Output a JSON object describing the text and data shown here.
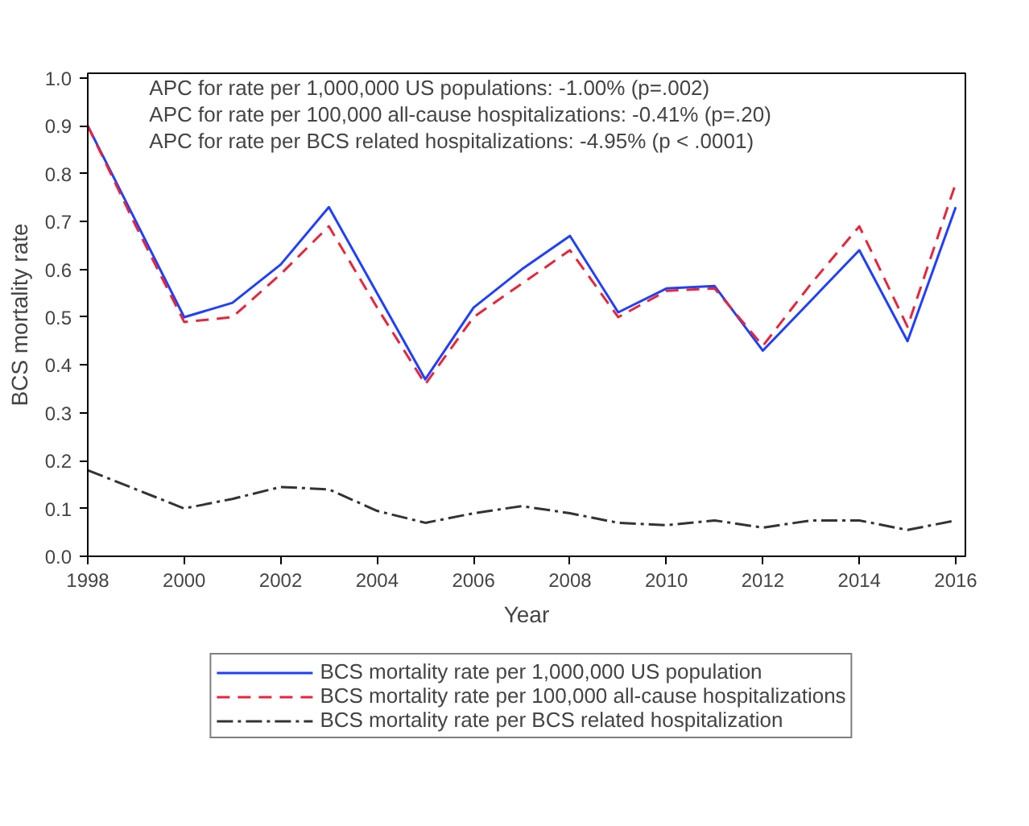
{
  "chart_data": {
    "type": "line",
    "xlabel": "Year",
    "ylabel": "BCS mortality rate",
    "annotations": [
      "APC for rate per 1,000,000 US populations: -1.00% (p=.002)",
      "APC for rate per 100,000 all-cause hospitalizations: -0.41% (p=.20)",
      "APC for rate per BCS related hospitalizations: -4.95% (p < .0001)"
    ],
    "x": [
      1998,
      1999,
      2000,
      2001,
      2002,
      2003,
      2004,
      2005,
      2006,
      2007,
      2008,
      2009,
      2010,
      2011,
      2012,
      2013,
      2014,
      2015,
      2016
    ],
    "series": [
      {
        "name": "BCS mortality rate per 1,000,000 US population",
        "color": "#1f3fff",
        "line_style": "solid",
        "values": [
          0.9,
          0.7,
          0.5,
          0.53,
          0.61,
          0.73,
          0.55,
          0.37,
          0.52,
          0.6,
          0.67,
          0.51,
          0.56,
          0.565,
          0.43,
          0.535,
          0.64,
          0.45,
          0.73
        ]
      },
      {
        "name": "BCS mortality rate per 100,000 all-cause hospitalizations",
        "color": "#e8253a",
        "line_style": "dashed",
        "values": [
          0.9,
          0.69,
          0.49,
          0.5,
          0.59,
          0.69,
          0.52,
          0.36,
          0.5,
          0.57,
          0.64,
          0.5,
          0.555,
          0.56,
          0.44,
          0.57,
          0.69,
          0.48,
          0.78
        ]
      },
      {
        "name": "BCS mortality rate per BCS related hospitalization",
        "color": "#333333",
        "line_style": "dashdot",
        "values": [
          0.18,
          0.14,
          0.1,
          0.12,
          0.145,
          0.14,
          0.095,
          0.07,
          0.09,
          0.105,
          0.09,
          0.07,
          0.065,
          0.075,
          0.06,
          0.075,
          0.075,
          0.055,
          0.075
        ]
      }
    ],
    "xlim": [
      1998,
      2016.2
    ],
    "ylim": [
      0,
      1.01
    ],
    "xticks": [
      1998,
      2000,
      2002,
      2004,
      2006,
      2008,
      2010,
      2012,
      2014,
      2016
    ],
    "yticks": [
      {
        "value": 0,
        "label": "0.0"
      },
      0.1,
      0.2,
      0.3,
      0.4,
      0.5,
      0.6,
      0.7,
      0.8,
      0.9,
      {
        "value": 1,
        "label": "1.0"
      }
    ],
    "grid": false,
    "legend": "bottom"
  }
}
